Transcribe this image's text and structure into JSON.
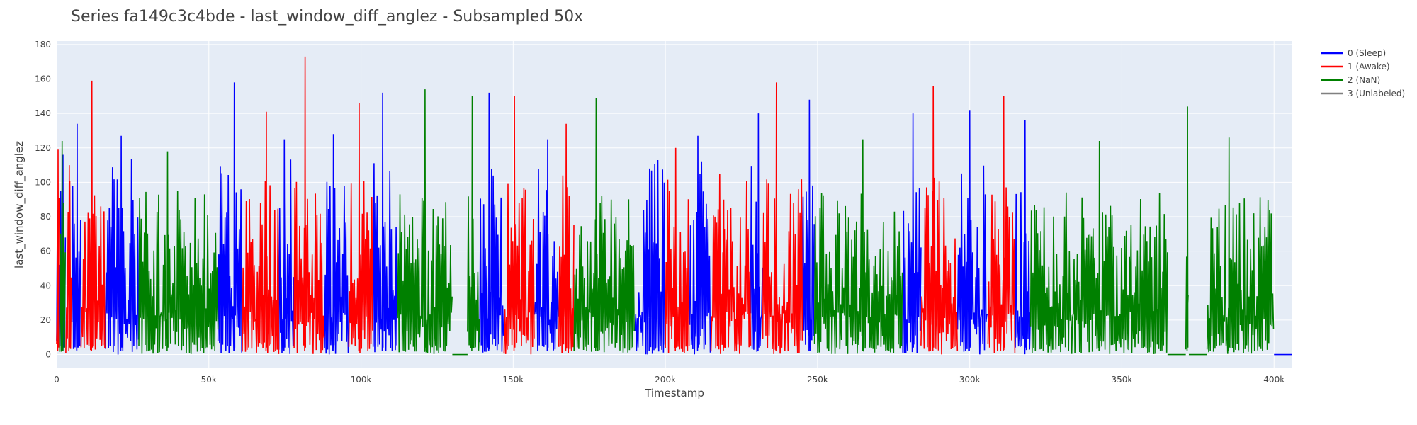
{
  "chart_data": {
    "type": "line",
    "title": "Series fa149c3c4bde - last_window_diff_anglez - Subsampled 50x",
    "xlabel": "Timestamp",
    "ylabel": "last_window_diff_anglez",
    "xlim": [
      0,
      406000
    ],
    "ylim": [
      -8,
      182
    ],
    "x_ticks": [
      0,
      50000,
      100000,
      150000,
      200000,
      250000,
      300000,
      350000,
      400000
    ],
    "x_tick_labels": [
      "0",
      "50k",
      "100k",
      "150k",
      "200k",
      "250k",
      "300k",
      "350k",
      "400k"
    ],
    "y_ticks": [
      0,
      20,
      40,
      60,
      80,
      100,
      120,
      140,
      160,
      180
    ],
    "y_tick_labels": [
      "0",
      "20",
      "40",
      "60",
      "80",
      "100",
      "120",
      "140",
      "160",
      "180"
    ],
    "grid": true,
    "legend_position": "top-right",
    "series": [
      {
        "name": "0 (Sleep)",
        "color": "#0000ff",
        "segments": [
          [
            0,
            3000
          ],
          [
            5000,
            8000
          ],
          [
            16000,
            27000
          ],
          [
            53000,
            61000
          ],
          [
            73000,
            78000
          ],
          [
            88000,
            96000
          ],
          [
            104000,
            112000
          ],
          [
            139000,
            147000
          ],
          [
            157000,
            165000
          ],
          [
            190000,
            200000
          ],
          [
            208000,
            215000
          ],
          [
            228000,
            232000
          ],
          [
            245000,
            249000
          ],
          [
            278000,
            284000
          ],
          [
            296000,
            306000
          ],
          [
            315000,
            320000
          ]
        ],
        "peaks": [
          116,
          134,
          127,
          158,
          125,
          128,
          152,
          152,
          125,
          108,
          127,
          140,
          148,
          140,
          142,
          136,
          124,
          148,
          148,
          125,
          145,
          140,
          122,
          128
        ],
        "typical_max": 115
      },
      {
        "name": "1 (Awake)",
        "color": "#ff0000",
        "segments": [
          [
            0,
            1000
          ],
          [
            3000,
            5000
          ],
          [
            8000,
            16000
          ],
          [
            61000,
            73000
          ],
          [
            78000,
            88000
          ],
          [
            96000,
            104000
          ],
          [
            147000,
            157000
          ],
          [
            165000,
            170000
          ],
          [
            200000,
            208000
          ],
          [
            215000,
            228000
          ],
          [
            232000,
            245000
          ],
          [
            284000,
            296000
          ],
          [
            306000,
            315000
          ]
        ],
        "peaks": [
          119,
          110,
          159,
          141,
          173,
          146,
          150,
          134,
          120,
          90,
          158,
          156,
          150,
          125,
          120,
          95,
          100,
          100
        ],
        "typical_max": 105
      },
      {
        "name": "2 (NaN)",
        "color": "#008000",
        "segments": [
          [
            1000,
            3000
          ],
          [
            27000,
            53000
          ],
          [
            112000,
            130000
          ],
          [
            135000,
            139000
          ],
          [
            170000,
            190000
          ],
          [
            249000,
            278000
          ],
          [
            320000,
            365000
          ],
          [
            371000,
            372000
          ],
          [
            378000,
            400000
          ]
        ],
        "peaks": [
          124,
          118,
          154,
          150,
          149,
          125,
          124,
          144,
          126,
          124,
          120,
          108,
          145,
          154,
          130,
          92,
          85,
          90
        ],
        "typical_max": 95,
        "flat_segments": [
          [
            130000,
            135000
          ],
          [
            365000,
            371000
          ],
          [
            372000,
            378000
          ]
        ]
      },
      {
        "name": "3 (Unlabeled)",
        "color": "#808080",
        "segments": [],
        "peaks": [],
        "typical_max": 0
      }
    ],
    "flat_tail": {
      "from": 400000,
      "to": 406000,
      "value": 0,
      "color": "#0000ff"
    }
  }
}
